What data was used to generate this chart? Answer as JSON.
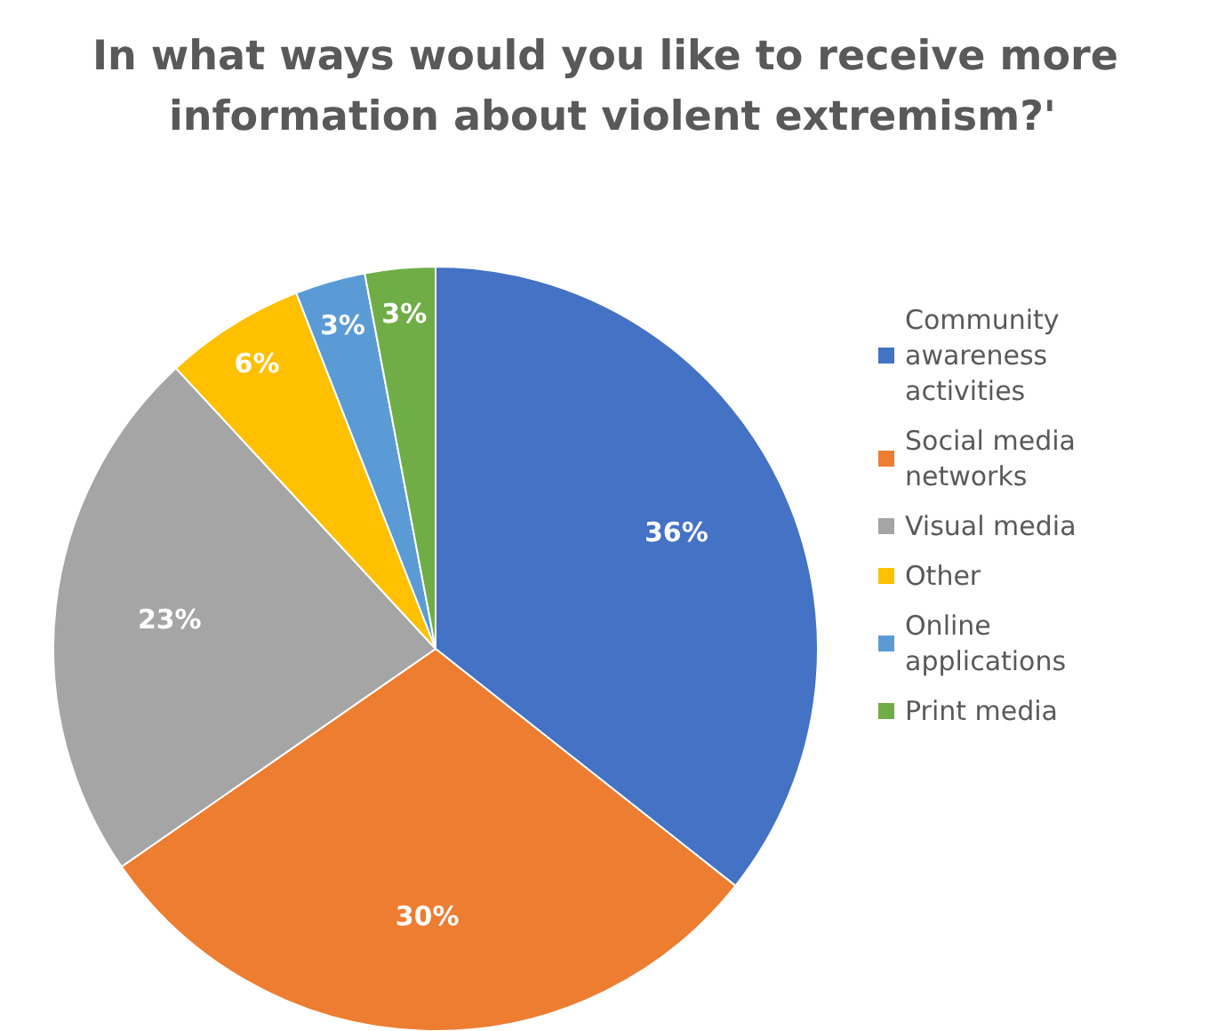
{
  "chart_data": {
    "type": "pie",
    "title": "In what ways would you like to receive more information about violent extremism?'",
    "categories": [
      "Community awareness activities",
      "Social media networks",
      "Visual media",
      "Other",
      "Online applications",
      "Print media"
    ],
    "values": [
      36,
      30,
      23,
      6,
      3,
      3
    ],
    "colors": [
      "#4472c4",
      "#ed7d31",
      "#a5a5a5",
      "#ffc000",
      "#5b9bd5",
      "#70ad47"
    ],
    "value_labels": [
      "36%",
      "30%",
      "23%",
      "6%",
      "3%",
      "3%"
    ],
    "legend": "right"
  }
}
